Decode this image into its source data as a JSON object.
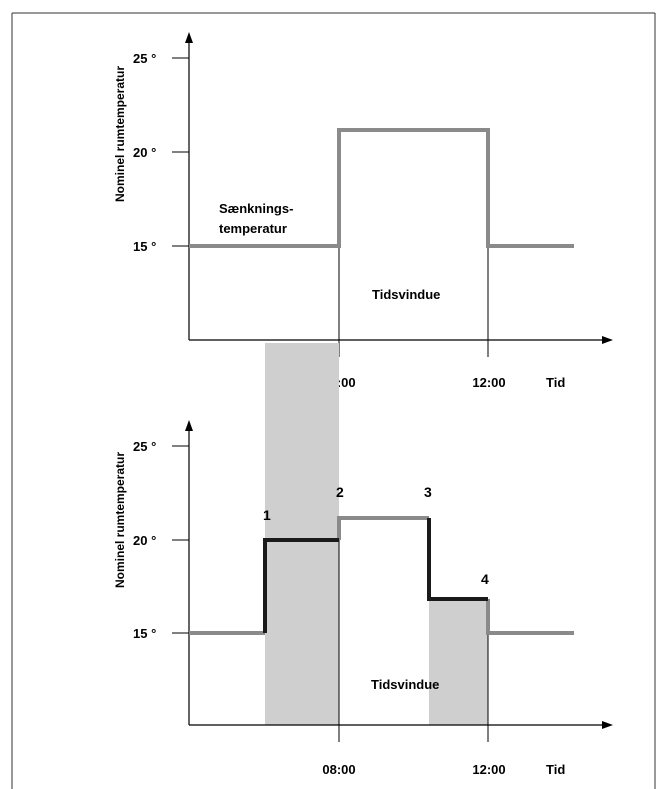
{
  "colors": {
    "program_line": "#8a8a8a",
    "override_line": "#1a1a1a",
    "shading": "#cfcfcf",
    "frame": "#333333"
  },
  "diagrams": [
    {
      "ylabel": "Nominel rumtemperatur",
      "yticks": [
        "25 °",
        "20 °",
        "15 °"
      ],
      "xticks": [
        "08:00",
        "12:00"
      ],
      "xlabel": "Tid",
      "setback_label_1": "Sænknings-",
      "setback_label_2": "temperatur",
      "window_label": "Tidsvindue"
    },
    {
      "ylabel": "Nominel rumtemperatur",
      "yticks": [
        "25 °",
        "20 °",
        "15 °"
      ],
      "xticks": [
        "08:00",
        "12:00"
      ],
      "xlabel": "Tid",
      "window_label": "Tidsvindue",
      "points": [
        "1",
        "2",
        "3",
        "4"
      ]
    }
  ]
}
